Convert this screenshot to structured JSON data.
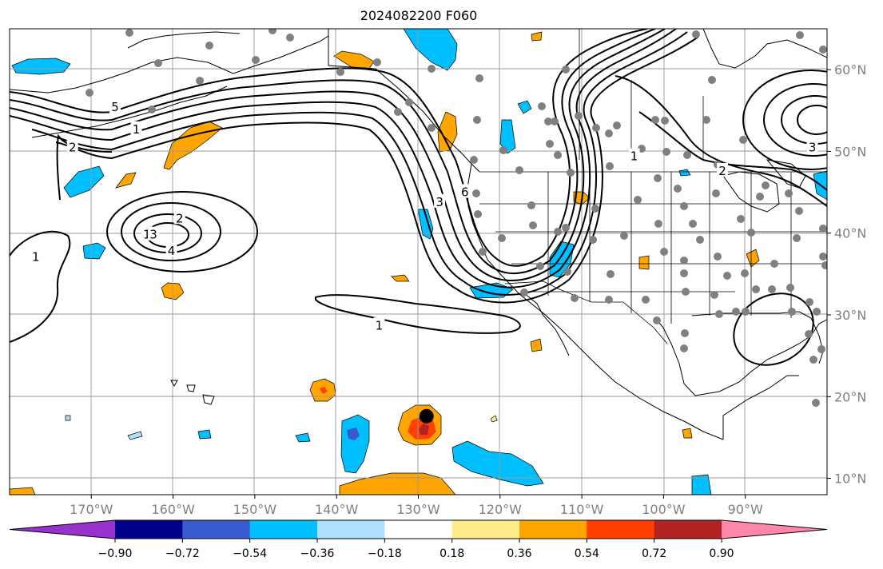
{
  "map": {
    "title": "2024082200 F060",
    "lon_ticks": [
      {
        "value": -170,
        "label": "170°W"
      },
      {
        "value": -160,
        "label": "160°W"
      },
      {
        "value": -150,
        "label": "150°W"
      },
      {
        "value": -140,
        "label": "140°W"
      },
      {
        "value": -130,
        "label": "130°W"
      },
      {
        "value": -120,
        "label": "120°W"
      },
      {
        "value": -110,
        "label": "110°W"
      },
      {
        "value": -100,
        "label": "100°W"
      },
      {
        "value": -90,
        "label": "90°W"
      }
    ],
    "lat_ticks": [
      {
        "value": 60,
        "label": "60°N"
      },
      {
        "value": 50,
        "label": "50°N"
      },
      {
        "value": 40,
        "label": "40°N"
      },
      {
        "value": 30,
        "label": "30°N"
      },
      {
        "value": 20,
        "label": "20°N"
      },
      {
        "value": 10,
        "label": "10°N"
      }
    ],
    "extent": {
      "lon_min": -180,
      "lon_max": -80,
      "lat_min": 8,
      "lat_max": 65
    },
    "colorbar": {
      "levels": [
        "−0.90",
        "−0.72",
        "−0.54",
        "−0.36",
        "−0.18",
        "0.18",
        "0.36",
        "0.54",
        "0.72",
        "0.90"
      ],
      "colors": [
        "#9932cc",
        "#00008b",
        "#3a5bd0",
        "#00bfff",
        "#ade0fb",
        "#ffffff",
        "#ffec8b",
        "#ffa500",
        "#ff4000",
        "#b22222",
        "#ff88aa"
      ],
      "extend": "both"
    },
    "contour_labels": [
      {
        "text": "1",
        "lon": -164.5,
        "lat": 52.8
      },
      {
        "text": "2",
        "lon": -172.3,
        "lat": 50.6
      },
      {
        "text": "5",
        "lon": -167.1,
        "lat": 55.5
      },
      {
        "text": "1",
        "lon": -176.8,
        "lat": 37.2
      },
      {
        "text": "1",
        "lon": -163.2,
        "lat": 39.9
      },
      {
        "text": "2",
        "lon": -159.2,
        "lat": 41.9
      },
      {
        "text": "3",
        "lon": -162.4,
        "lat": 39.9
      },
      {
        "text": "4",
        "lon": -160.2,
        "lat": 37.9
      },
      {
        "text": "1",
        "lon": -134.8,
        "lat": 28.8
      },
      {
        "text": "3",
        "lon": -127.4,
        "lat": 43.9
      },
      {
        "text": "6",
        "lon": -124.3,
        "lat": 45.1
      },
      {
        "text": "1",
        "lon": -103.6,
        "lat": 49.5
      },
      {
        "text": "2",
        "lon": -92.8,
        "lat": 47.7
      },
      {
        "text": "3",
        "lon": -81.8,
        "lat": 50.6
      }
    ],
    "tropical_storm_marker": {
      "lon": -129.0,
      "lat": 17.6
    }
  }
}
